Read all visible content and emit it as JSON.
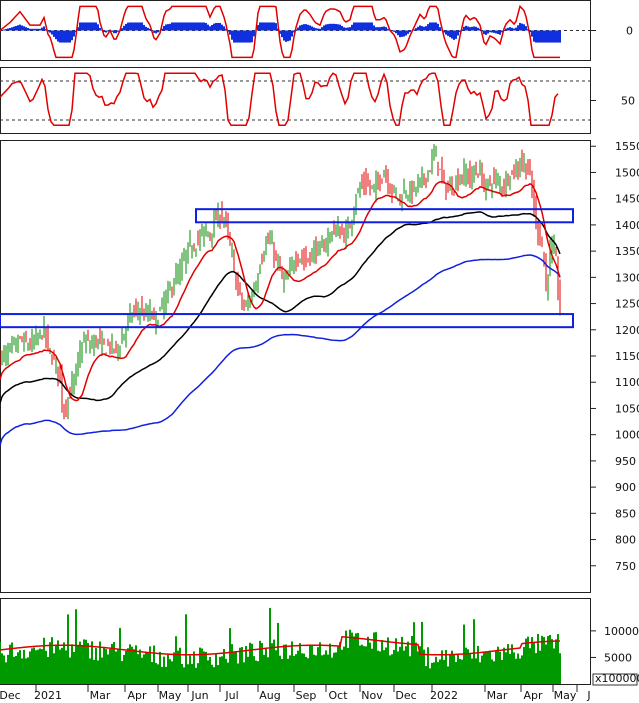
{
  "chart_data": [
    {
      "type": "line",
      "panel": "macd",
      "yaxis": {
        "ticks": [
          0
        ],
        "range": [
          -22,
          22
        ]
      },
      "series": [
        {
          "role": "signal-line",
          "color": "#e00000"
        },
        {
          "role": "histogram",
          "color": "#1030e0"
        }
      ]
    },
    {
      "type": "line",
      "panel": "stochastic",
      "yaxis": {
        "ticks": [
          50
        ],
        "range": [
          0,
          100
        ]
      },
      "reference_lines": [
        80,
        20
      ],
      "series": [
        {
          "role": "oscillator",
          "color": "#e00000"
        }
      ]
    },
    {
      "type": "candlestick",
      "panel": "price",
      "yaxis": {
        "range": [
          700,
          1560
        ],
        "ticks": [
          750,
          800,
          850,
          900,
          950,
          1000,
          1050,
          1100,
          1150,
          1200,
          1250,
          1300,
          1350,
          1400,
          1450,
          1500,
          1550
        ]
      },
      "series": [
        {
          "role": "price",
          "up_color": "#008a00",
          "down_color": "#e00000",
          "close_points": [
            [
              0,
              1145
            ],
            [
              10,
              1160
            ],
            [
              20,
              1180
            ],
            [
              30,
              1170
            ],
            [
              40,
              1190
            ],
            [
              44,
              1200
            ],
            [
              48,
              1165
            ],
            [
              52,
              1150
            ],
            [
              56,
              1130
            ],
            [
              60,
              1110
            ],
            [
              63,
              1040
            ],
            [
              66,
              1060
            ],
            [
              70,
              1080
            ],
            [
              75,
              1110
            ],
            [
              80,
              1160
            ],
            [
              85,
              1180
            ],
            [
              90,
              1170
            ],
            [
              95,
              1180
            ],
            [
              100,
              1175
            ],
            [
              105,
              1165
            ],
            [
              110,
              1170
            ],
            [
              115,
              1160
            ],
            [
              120,
              1175
            ],
            [
              125,
              1200
            ],
            [
              130,
              1225
            ],
            [
              135,
              1235
            ],
            [
              140,
              1240
            ],
            [
              145,
              1225
            ],
            [
              150,
              1235
            ],
            [
              155,
              1215
            ],
            [
              160,
              1235
            ],
            [
              165,
              1260
            ],
            [
              170,
              1275
            ],
            [
              175,
              1300
            ],
            [
              180,
              1310
            ],
            [
              185,
              1340
            ],
            [
              190,
              1360
            ],
            [
              195,
              1365
            ],
            [
              200,
              1375
            ],
            [
              205,
              1390
            ],
            [
              210,
              1385
            ],
            [
              215,
              1410
            ],
            [
              220,
              1420
            ],
            [
              225,
              1410
            ],
            [
              228,
              1380
            ],
            [
              232,
              1340
            ],
            [
              236,
              1290
            ],
            [
              240,
              1265
            ],
            [
              244,
              1240
            ],
            [
              248,
              1250
            ],
            [
              252,
              1270
            ],
            [
              256,
              1290
            ],
            [
              260,
              1330
            ],
            [
              265,
              1360
            ],
            [
              270,
              1370
            ],
            [
              275,
              1340
            ],
            [
              280,
              1310
            ],
            [
              285,
              1290
            ],
            [
              290,
              1310
            ],
            [
              295,
              1340
            ],
            [
              300,
              1340
            ],
            [
              305,
              1330
            ],
            [
              310,
              1340
            ],
            [
              315,
              1355
            ],
            [
              320,
              1350
            ],
            [
              325,
              1365
            ],
            [
              330,
              1380
            ],
            [
              335,
              1395
            ],
            [
              340,
              1385
            ],
            [
              345,
              1380
            ],
            [
              350,
              1400
            ],
            [
              355,
              1450
            ],
            [
              360,
              1470
            ],
            [
              365,
              1480
            ],
            [
              370,
              1470
            ],
            [
              375,
              1470
            ],
            [
              380,
              1490
            ],
            [
              385,
              1505
            ],
            [
              390,
              1470
            ],
            [
              395,
              1460
            ],
            [
              400,
              1450
            ],
            [
              405,
              1470
            ],
            [
              410,
              1460
            ],
            [
              415,
              1470
            ],
            [
              420,
              1480
            ],
            [
              425,
              1490
            ],
            [
              430,
              1510
            ],
            [
              435,
              1540
            ],
            [
              440,
              1500
            ],
            [
              445,
              1470
            ],
            [
              450,
              1470
            ],
            [
              455,
              1480
            ],
            [
              460,
              1490
            ],
            [
              465,
              1500
            ],
            [
              470,
              1490
            ],
            [
              475,
              1505
            ],
            [
              480,
              1500
            ],
            [
              485,
              1470
            ],
            [
              490,
              1480
            ],
            [
              495,
              1490
            ],
            [
              500,
              1475
            ],
            [
              505,
              1480
            ],
            [
              510,
              1500
            ],
            [
              515,
              1500
            ],
            [
              520,
              1520
            ],
            [
              525,
              1515
            ],
            [
              530,
              1490
            ],
            [
              533,
              1450
            ],
            [
              536,
              1400
            ],
            [
              540,
              1380
            ],
            [
              543,
              1350
            ],
            [
              546,
              1275
            ],
            [
              549,
              1340
            ],
            [
              552,
              1355
            ],
            [
              555,
              1350
            ],
            [
              558,
              1280
            ],
            [
              560,
              1240
            ]
          ]
        },
        {
          "role": "moving-average-1",
          "color": "#e00000"
        },
        {
          "role": "moving-average-2",
          "color": "#000000"
        },
        {
          "role": "moving-average-3",
          "color": "#1020e0"
        }
      ],
      "zones": [
        {
          "price_low": 1405,
          "price_high": 1430,
          "shape": "rectangle",
          "color": "#1020e0"
        },
        {
          "price_low": 1205,
          "price_high": 1230,
          "shape": "rectangle",
          "color": "#1020e0"
        }
      ]
    },
    {
      "type": "bar",
      "panel": "volume",
      "yaxis": {
        "ticks": [
          5000,
          10000
        ],
        "range": [
          0,
          16000
        ],
        "multiplier_label": "x100000"
      },
      "series": [
        {
          "role": "volume",
          "color": "#009a00"
        },
        {
          "role": "volume-average",
          "color": "#e00000"
        }
      ]
    }
  ],
  "xaxis": {
    "labels": [
      "Dec",
      "2021",
      "Mar",
      "Apr",
      "May",
      "Jun",
      "Jul",
      "Aug",
      "Sep",
      "Oct",
      "Nov",
      "Dec",
      "2022",
      "Mar",
      "Apr",
      "May",
      "J"
    ]
  }
}
